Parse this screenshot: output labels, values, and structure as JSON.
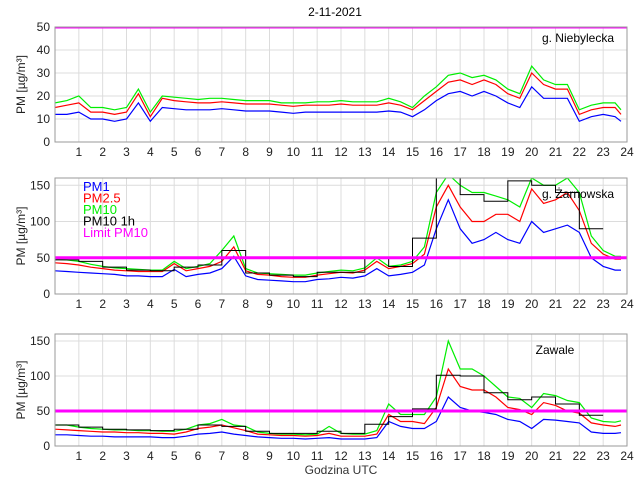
{
  "chart_data": {
    "type": "line",
    "title": "2-11-2021",
    "xlabel": "Godzina UTC",
    "xlim": [
      0,
      24
    ],
    "xticks": [
      1,
      2,
      3,
      4,
      5,
      6,
      7,
      8,
      9,
      10,
      11,
      12,
      13,
      14,
      15,
      16,
      17,
      18,
      19,
      20,
      21,
      22,
      23,
      24
    ],
    "grid": true,
    "limit_pm10": 50,
    "colors": {
      "PM1": "#0000ff",
      "PM2.5": "#ff0000",
      "PM10": "#00ee00",
      "PM10 1h": "#000000",
      "Limit PM10": "#ff00ff"
    },
    "legend": {
      "placement": "top-left",
      "panel": 1,
      "entries": [
        "PM1",
        "PM2.5",
        "PM10",
        "PM10 1h",
        "Limit PM10"
      ]
    },
    "x": [
      0,
      0.5,
      1,
      1.5,
      2,
      2.5,
      3,
      3.5,
      4,
      4.5,
      5,
      5.5,
      6,
      6.5,
      7,
      7.5,
      8,
      8.5,
      9,
      9.5,
      10,
      10.5,
      11,
      11.5,
      12,
      12.5,
      13,
      13.5,
      14,
      14.5,
      15,
      15.5,
      16,
      16.5,
      17,
      17.5,
      18,
      18.5,
      19,
      19.5,
      20,
      20.5,
      21,
      21.5,
      22,
      22.5,
      23,
      23.5,
      23.75
    ],
    "panels": [
      {
        "station": "g. Niebylecka",
        "ylabel": "PM [µg/m³]",
        "ylim": [
          0,
          50
        ],
        "yticks": [
          0,
          10,
          20,
          30,
          40,
          50
        ],
        "series": [
          {
            "name": "PM1",
            "values": [
              12,
              12,
              13,
              10,
              10,
              9,
              10,
              17,
              9,
              15,
              14.5,
              14,
              14,
              14,
              14.5,
              14,
              13.5,
              13.5,
              13.5,
              13,
              12.5,
              13,
              13,
              13,
              13,
              13,
              13,
              13,
              13.5,
              13,
              11,
              14,
              18,
              21,
              22,
              20,
              22,
              20,
              17,
              15,
              24,
              19,
              19,
              19,
              9,
              11,
              12,
              11,
              9
            ]
          },
          {
            "name": "PM2.5",
            "values": [
              15,
              16,
              17,
              13,
              13,
              12,
              13,
              21,
              11,
              19,
              18,
              17.5,
              17,
              17,
              17.5,
              17,
              16.5,
              16.5,
              16.5,
              16,
              15.5,
              16,
              16,
              16,
              16.5,
              16,
              16,
              16,
              17,
              16,
              14,
              18,
              22,
              26,
              27,
              25,
              27,
              25,
              21,
              19,
              30,
              25,
              23,
              23,
              12,
              14,
              15,
              15,
              12
            ]
          },
          {
            "name": "PM10",
            "values": [
              17,
              18,
              20,
              15,
              15,
              14,
              15,
              23,
              13,
              20,
              19.5,
              19,
              18.5,
              19,
              19,
              18.5,
              18,
              18,
              18,
              17,
              17,
              17,
              17.5,
              17.5,
              18,
              17.5,
              17.5,
              17.5,
              19,
              17.5,
              15,
              20,
              24,
              29,
              30,
              28,
              29,
              27,
              23,
              21,
              33,
              27,
              25,
              25,
              14,
              16,
              17,
              17,
              14
            ]
          }
        ],
        "hourly_pm10": []
      },
      {
        "station": "g. Żarnowska",
        "ylabel": "PM [µg/m³]",
        "ylim": [
          0,
          160
        ],
        "yticks": [
          0,
          50,
          100,
          150
        ],
        "series": [
          {
            "name": "PM1",
            "values": [
              32,
              31,
              30,
              29,
              28,
              27,
              25,
              25,
              24,
              24,
              34,
              24,
              27,
              29,
              35,
              52,
              25,
              20,
              19,
              18,
              17,
              17,
              20,
              21,
              23,
              22,
              25,
              35,
              25,
              27,
              30,
              40,
              90,
              130,
              90,
              70,
              75,
              85,
              75,
              70,
              100,
              85,
              90,
              95,
              85,
              50,
              38,
              33,
              33
            ]
          },
          {
            "name": "PM2.5",
            "values": [
              43,
              42,
              40,
              37,
              35,
              33,
              32,
              31,
              31,
              31,
              42,
              32,
              35,
              38,
              45,
              65,
              32,
              27,
              26,
              24,
              23,
              23,
              26,
              28,
              30,
              29,
              33,
              45,
              35,
              38,
              42,
              55,
              120,
              150,
              120,
              100,
              100,
              110,
              110,
              100,
              145,
              125,
              130,
              140,
              115,
              70,
              55,
              48,
              48
            ]
          },
          {
            "name": "PM10",
            "values": [
              48,
              47,
              45,
              41,
              38,
              36,
              35,
              34,
              33,
              33,
              45,
              35,
              38,
              42,
              60,
              80,
              35,
              29,
              28,
              27,
              26,
              26,
              29,
              31,
              33,
              32,
              36,
              50,
              38,
              40,
              45,
              65,
              140,
              165,
              150,
              140,
              140,
              135,
              130,
              120,
              160,
              150,
              150,
              160,
              140,
              80,
              60,
              52,
              52
            ]
          }
        ],
        "hourly_pm10": [
          47,
          45,
          37,
          33,
          32,
          37,
          40,
          60,
          29,
          26,
          24,
          30,
          30,
          50,
          38,
          77,
          160,
          137,
          128,
          156,
          150,
          140,
          90
        ]
      },
      {
        "station": "Zawale",
        "ylabel": "PM [µg/m³]",
        "ylim": [
          0,
          160
        ],
        "yticks": [
          0,
          50,
          100,
          150
        ],
        "series": [
          {
            "name": "PM1",
            "values": [
              16,
              16,
              15,
              14,
              14,
              13,
              13,
              13,
              13,
              12,
              12,
              14,
              17,
              18,
              20,
              17,
              15,
              13,
              12,
              11,
              11,
              10,
              11,
              12,
              10,
              10,
              10,
              12,
              35,
              28,
              25,
              25,
              35,
              70,
              55,
              50,
              48,
              45,
              38,
              35,
              25,
              38,
              37,
              35,
              33,
              20,
              18,
              18,
              19
            ]
          },
          {
            "name": "PM2.5",
            "values": [
              24,
              23,
              22,
              21,
              20,
              20,
              19,
              19,
              18,
              18,
              17,
              20,
              25,
              27,
              30,
              26,
              22,
              17,
              16,
              15,
              15,
              14,
              15,
              18,
              14,
              14,
              14,
              17,
              45,
              35,
              35,
              32,
              55,
              110,
              85,
              80,
              80,
              70,
              55,
              52,
              45,
              62,
              58,
              50,
              47,
              33,
              30,
              28,
              30
            ]
          },
          {
            "name": "PM10",
            "values": [
              30,
              30,
              27,
              25,
              24,
              23,
              23,
              22,
              22,
              21,
              21,
              24,
              30,
              32,
              38,
              30,
              28,
              20,
              18,
              17,
              17,
              16,
              17,
              28,
              18,
              17,
              17,
              22,
              60,
              45,
              45,
              45,
              70,
              150,
              110,
              110,
              100,
              85,
              70,
              68,
              55,
              75,
              72,
              65,
              62,
              40,
              35,
              34,
              36
            ]
          }
        ],
        "hourly_pm10": [
          30,
          27,
          24,
          23,
          22,
          24,
          30,
          28,
          21,
          18,
          18,
          21,
          18,
          31,
          42,
          53,
          101,
          100,
          76,
          66,
          70,
          60,
          44
        ]
      }
    ]
  }
}
